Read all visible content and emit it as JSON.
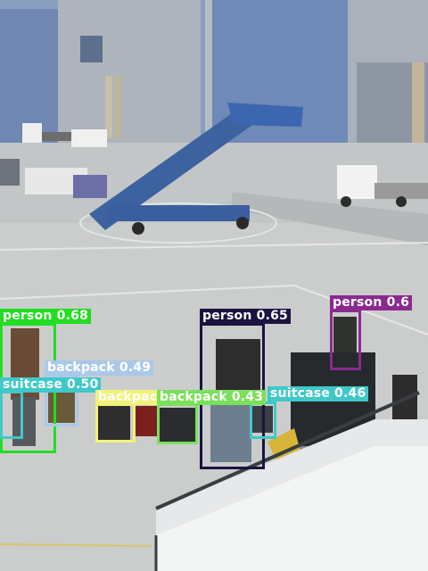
{
  "detections": [
    {
      "label": "person",
      "score": "0.68",
      "color": "#22dd22",
      "text_color": "#ffffff"
    },
    {
      "label": "person",
      "score": "0.65",
      "color": "#1b1440",
      "text_color": "#ffffff"
    },
    {
      "label": "person",
      "score": "0.6",
      "color": "#8a2a8f",
      "text_color": "#ffffff"
    },
    {
      "label": "backpack",
      "score": "0.49",
      "color": "#a9c8ea",
      "text_color": "#ffffff"
    },
    {
      "label": "suitcase",
      "score": "0.50",
      "color": "#40c8c8",
      "text_color": "#ffffff"
    },
    {
      "label": "backpack",
      "score": "",
      "color": "#f2f27a",
      "text_color": "#ffffff"
    },
    {
      "label": "backpack",
      "score": "0.43",
      "color": "#7be05a",
      "text_color": "#ffffff"
    },
    {
      "label": "suitcase",
      "score": "0.46",
      "color": "#40c8c8",
      "text_color": "#ffffff"
    }
  ]
}
